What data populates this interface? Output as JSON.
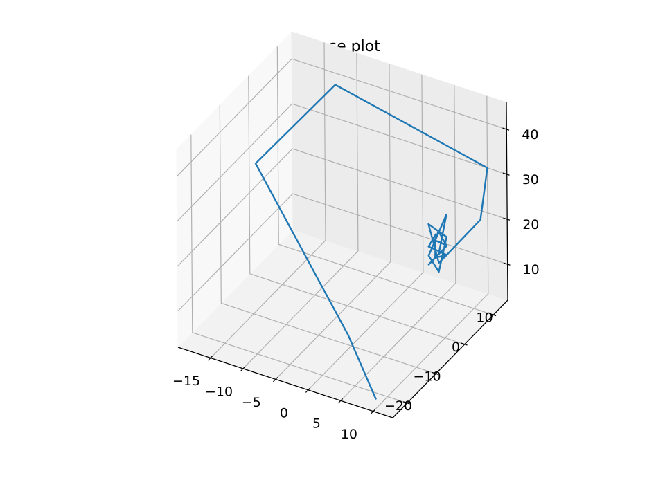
{
  "chart_data": {
    "type": "line",
    "projection": "3d",
    "title": "phase plot",
    "xlabel": "",
    "ylabel": "",
    "zlabel": "",
    "grid": true,
    "xlim": [
      -20,
      13
    ],
    "ylim": [
      -25,
      15
    ],
    "zlim": [
      2,
      46
    ],
    "x_ticks": [
      -15,
      -10,
      -5,
      0,
      5,
      10
    ],
    "x_tick_labels": [
      "−15",
      "−10",
      "−5",
      "0",
      "5",
      "10"
    ],
    "y_ticks": [
      -20,
      -10,
      0,
      10
    ],
    "y_tick_labels": [
      "−20",
      "−10",
      "0",
      "10"
    ],
    "z_ticks": [
      10,
      20,
      30,
      40
    ],
    "z_tick_labels": [
      "10",
      "20",
      "30",
      "40"
    ],
    "series": [
      {
        "color": "#1f77b4",
        "x": [
          10,
          0,
          -19,
          -12,
          10,
          12,
          9,
          9,
          10,
          8,
          9,
          10,
          8,
          9,
          10,
          8,
          9,
          10,
          8,
          9,
          10,
          8.5,
          9.5
        ],
        "y": [
          -24,
          -11,
          0,
          12,
          15,
          8,
          3,
          -1,
          -3,
          -1,
          3,
          -2,
          -1,
          3,
          -2,
          -1,
          3,
          -2,
          -1,
          3,
          -2,
          0,
          2
        ],
        "z": [
          4,
          5,
          27,
          40,
          30,
          24,
          18,
          20,
          27,
          22,
          18,
          20,
          27,
          22,
          18,
          20,
          27,
          22,
          18,
          20,
          27,
          23,
          21
        ]
      }
    ]
  }
}
